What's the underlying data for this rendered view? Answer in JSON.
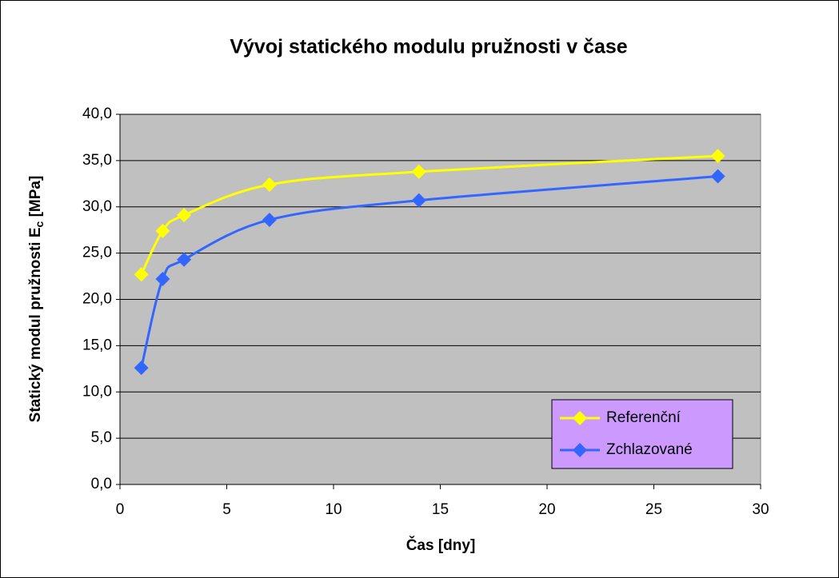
{
  "chart_data": {
    "type": "line",
    "title": "Vývoj statického modulu pružnosti v čase",
    "xlabel": "Čas [dny]",
    "ylabel": [
      "Statický modul pružnosti E",
      "c",
      " [MPa]"
    ],
    "x": [
      1,
      2,
      3,
      7,
      14,
      28
    ],
    "series": [
      {
        "name": "Referenční",
        "color": "#ffff00",
        "values": [
          22.7,
          27.4,
          29.1,
          32.4,
          33.8,
          35.5
        ]
      },
      {
        "name": "Zchlazované",
        "color": "#3366ff",
        "values": [
          12.6,
          22.2,
          24.3,
          28.6,
          30.7,
          33.3
        ]
      }
    ],
    "xlim": [
      0,
      30
    ],
    "xticks": [
      0,
      5,
      10,
      15,
      20,
      25,
      30
    ],
    "ylim": [
      0,
      40
    ],
    "yticks": [
      {
        "value": 0,
        "label": "0,0"
      },
      {
        "value": 5,
        "label": "5,0"
      },
      {
        "value": 10,
        "label": "10,0"
      },
      {
        "value": 15,
        "label": "15,0"
      },
      {
        "value": 20,
        "label": "20,0"
      },
      {
        "value": 25,
        "label": "25,0"
      },
      {
        "value": 30,
        "label": "30,0"
      },
      {
        "value": 35,
        "label": "35,0"
      },
      {
        "value": 40,
        "label": "40,0"
      }
    ],
    "grid": true,
    "legend": "lower right",
    "smooth": true
  }
}
